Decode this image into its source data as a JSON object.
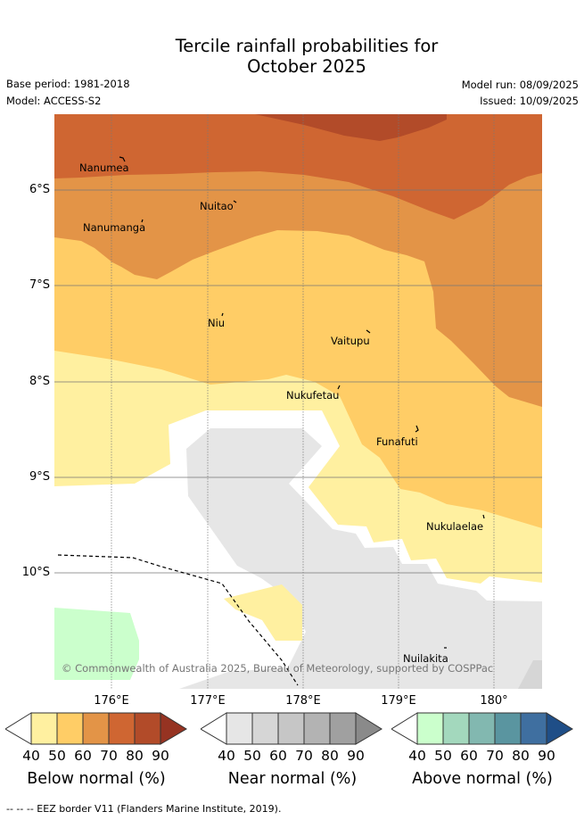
{
  "title_line1": "Tercile rainfall probabilities for",
  "title_line2": "October 2025",
  "meta": {
    "base_period": "Base period: 1981-2018",
    "model": "Model: ACCESS-S2",
    "model_run": "Model run: 08/09/2025",
    "issued": "Issued: 10/09/2025"
  },
  "map": {
    "lat_labels": [
      "6°S",
      "7°S",
      "8°S",
      "9°S",
      "10°S"
    ],
    "lon_labels": [
      "176°E",
      "177°E",
      "178°E",
      "179°E",
      "180°"
    ],
    "places": [
      "Nanumea",
      "Nuitao",
      "Nanumanga",
      "Niu",
      "Vaitupu",
      "Nukufetau",
      "Funafuti",
      "Nukulaelae",
      "Nuilakita"
    ],
    "copyright": "© Commonwealth of Australia 2025, Bureau of Meteorology, supported by COSPPac"
  },
  "legends": [
    {
      "title": "Below normal (%)",
      "ticks": [
        "40",
        "50",
        "60",
        "70",
        "80",
        "90"
      ],
      "colors": [
        "#fff0a0",
        "#ffcd66",
        "#e39447",
        "#cf6632",
        "#b24b29",
        "#963322"
      ]
    },
    {
      "title": "Near normal (%)",
      "ticks": [
        "40",
        "50",
        "60",
        "70",
        "80",
        "90"
      ],
      "colors": [
        "#e6e6e6",
        "#d6d6d6",
        "#c6c6c6",
        "#b3b3b3",
        "#a0a0a0",
        "#8a8a8a"
      ]
    },
    {
      "title": "Above normal (%)",
      "ticks": [
        "40",
        "50",
        "60",
        "70",
        "80",
        "90"
      ],
      "colors": [
        "#cbffcc",
        "#a3d8bd",
        "#82b8b0",
        "#5a95a0",
        "#3f6fa0",
        "#1f4e87"
      ]
    }
  ],
  "footer": "--  --  -- EEZ border V11 (Flanders Marine Institute, 2019)."
}
